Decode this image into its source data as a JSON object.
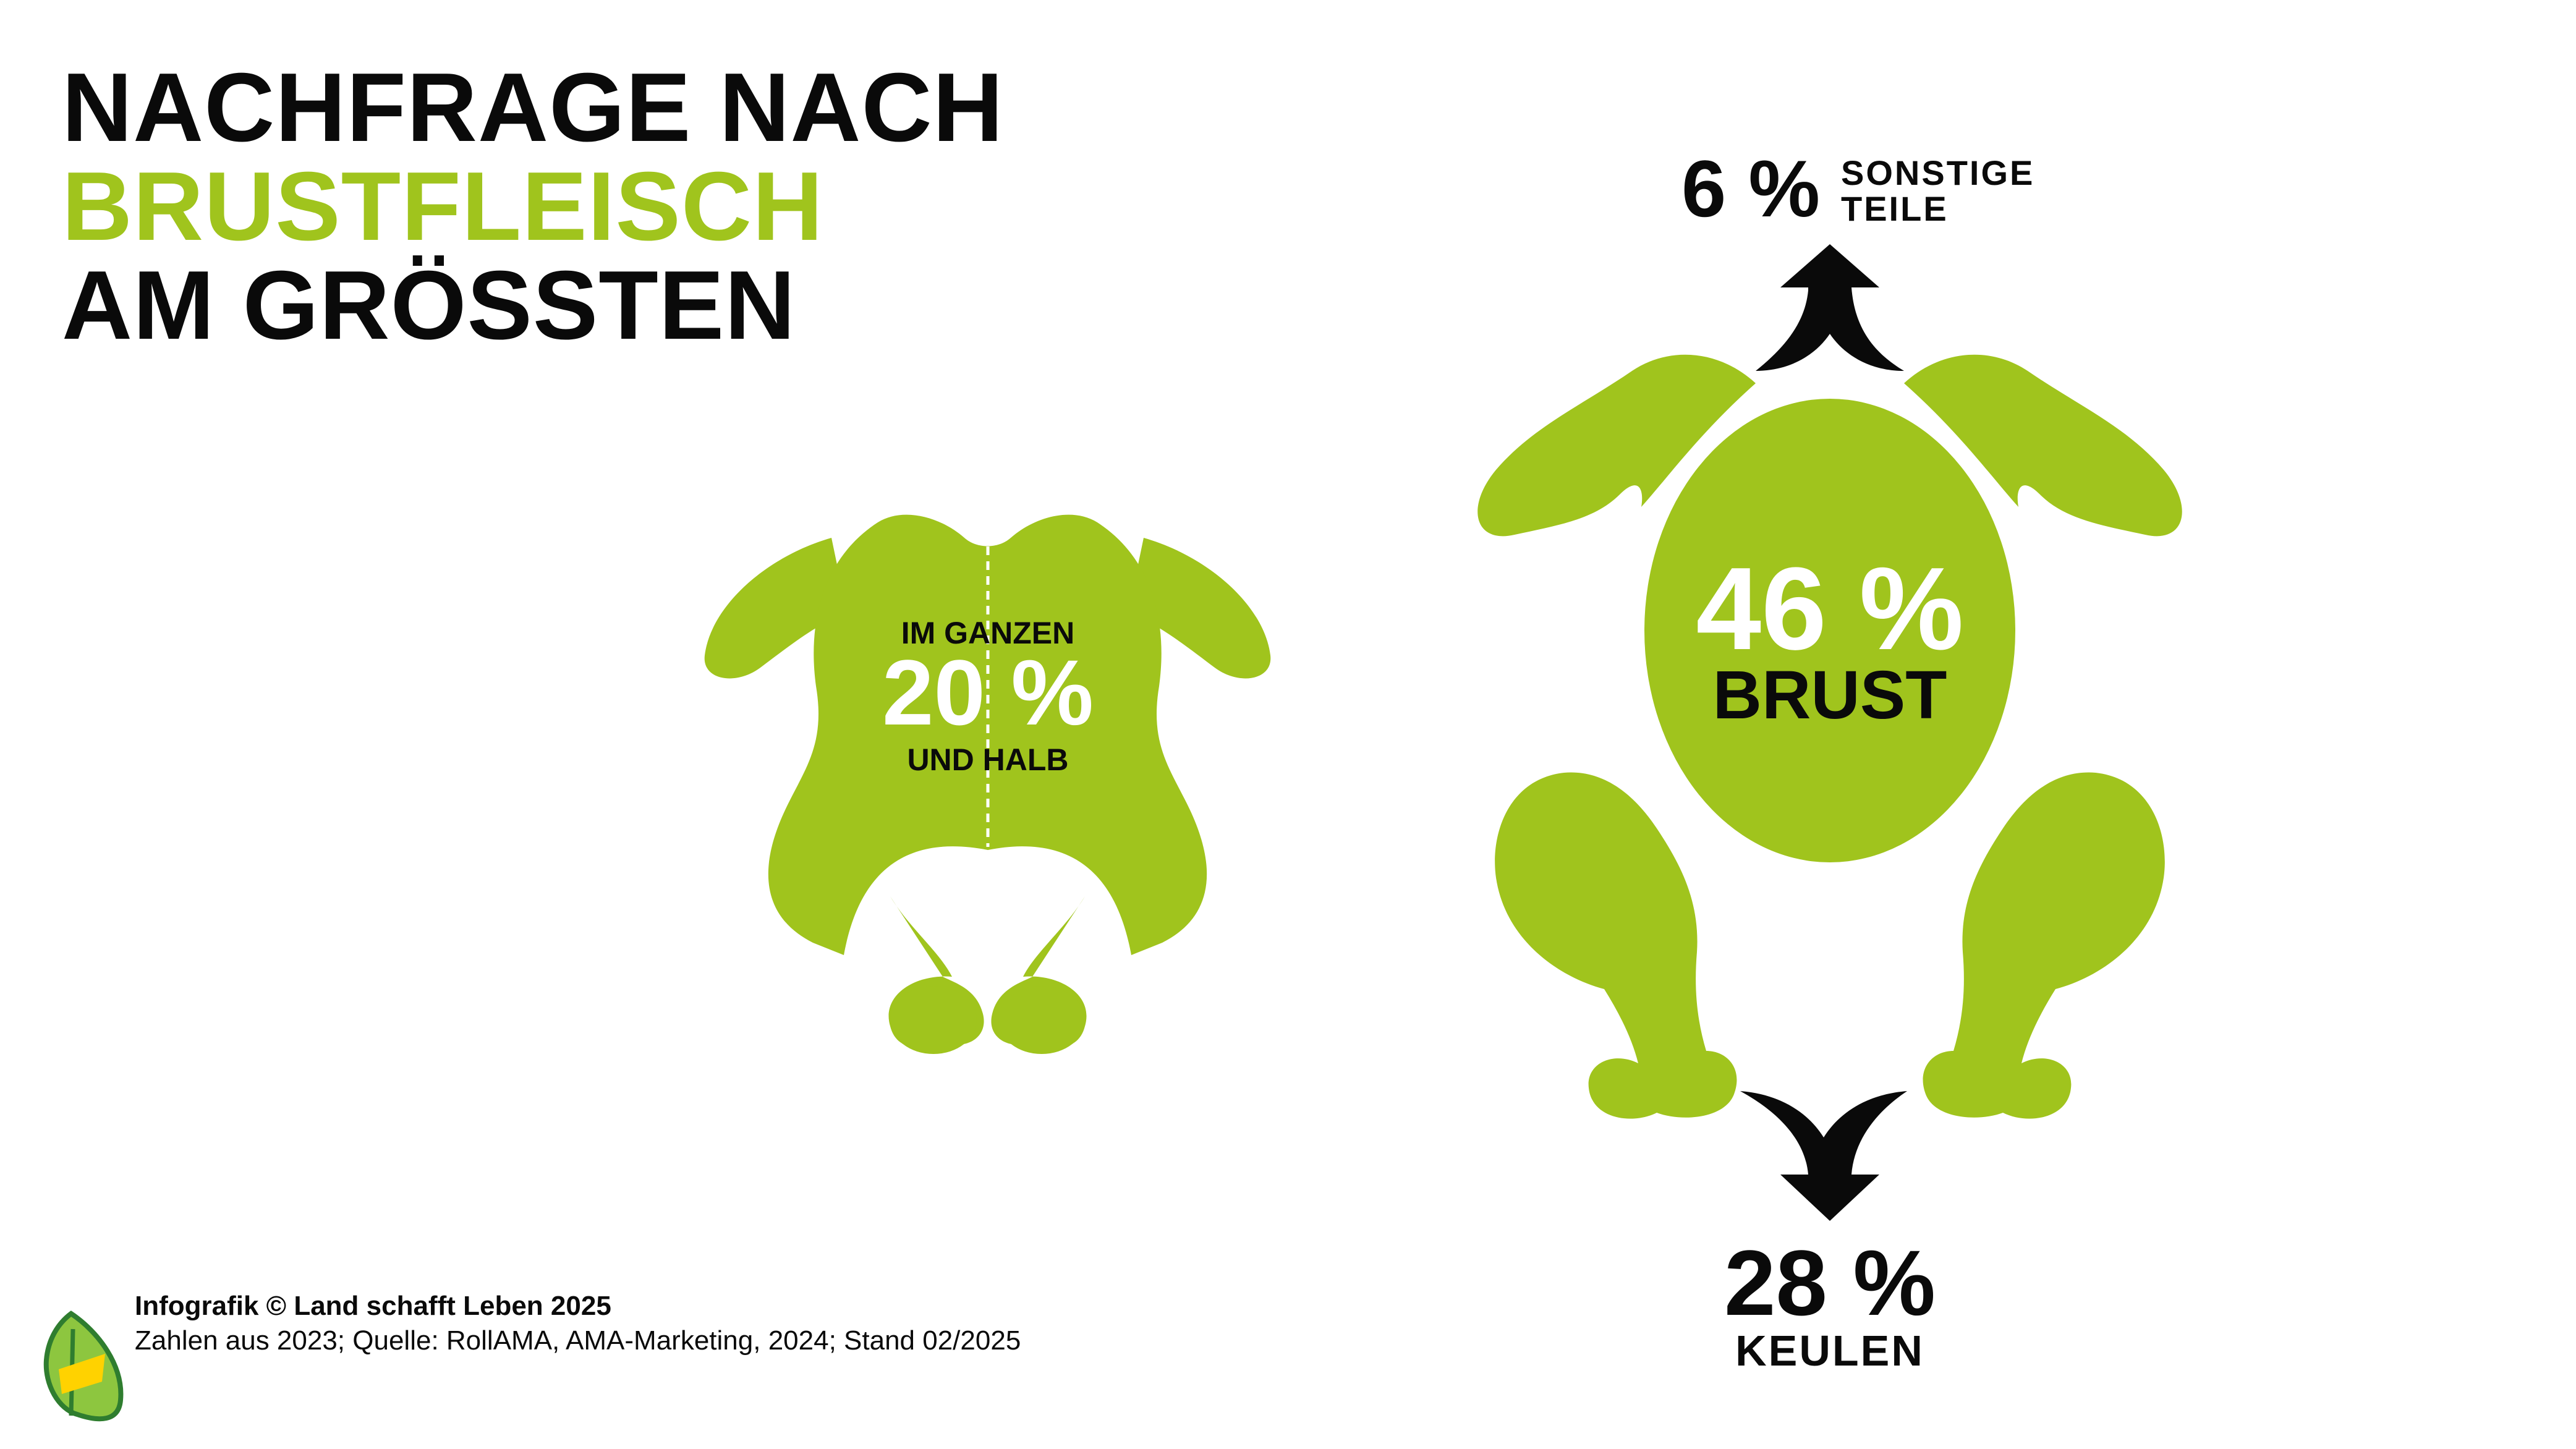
{
  "title": {
    "line1": "NACHFRAGE NACH",
    "line2": "BRUSTFLEISCH",
    "line3": "AM GRÖSSTEN"
  },
  "whole_chicken": {
    "label_top": "IM GANZEN",
    "value": "20 %",
    "label_bottom": "UND HALB"
  },
  "parts": {
    "breast": {
      "value": "46 %",
      "label": "BRUST"
    },
    "other": {
      "value": "6 %",
      "label_line1": "SONSTIGE",
      "label_line2": "TEILE"
    },
    "legs": {
      "value": "28 %",
      "label": "KEULEN"
    }
  },
  "footer": {
    "credit": "Infografik © Land schafft Leben 2025",
    "source": "Zahlen aus 2023; Quelle: RollAMA, AMA-Marketing, 2024; Stand 02/2025"
  },
  "colors": {
    "accent": "#a0c41d",
    "text": "#0a0a0a",
    "background": "#ffffff"
  },
  "icons": [
    "whole-chicken-icon",
    "chicken-parts-icon",
    "arrow-up-icon",
    "arrow-down-icon",
    "leaf-logo-icon"
  ]
}
